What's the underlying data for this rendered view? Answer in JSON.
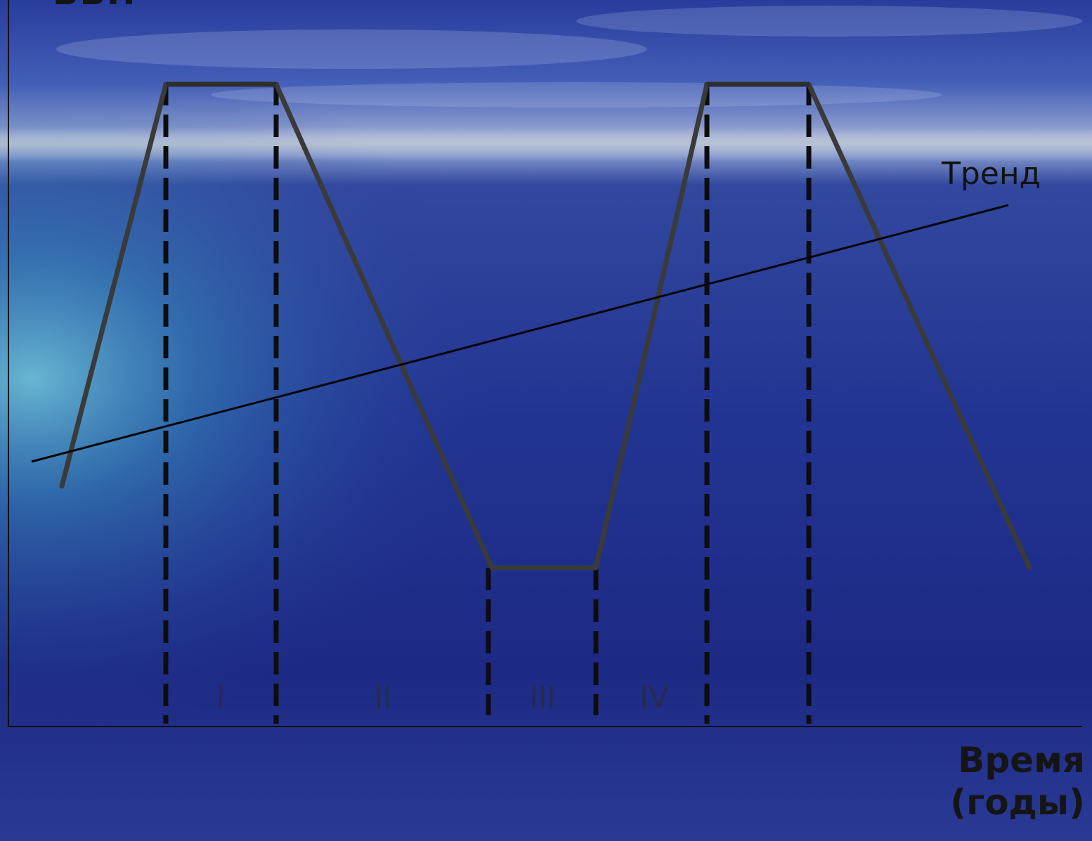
{
  "labels": {
    "top_cut": "ВВП",
    "x_axis_line1": "Время",
    "x_axis_line2": "(годы)",
    "trend": "Тренд"
  },
  "phases": [
    "I",
    "II",
    "III",
    "IV"
  ],
  "colors": {
    "sea_deep": "#1e2a82",
    "sea_mid": "#2c3c9a",
    "sky": "#4a5fb8",
    "haze": "#a8b6dc",
    "glow": "#5fc8d6",
    "curve": "#3a3a3a",
    "lines": "#0d0d0d"
  }
}
